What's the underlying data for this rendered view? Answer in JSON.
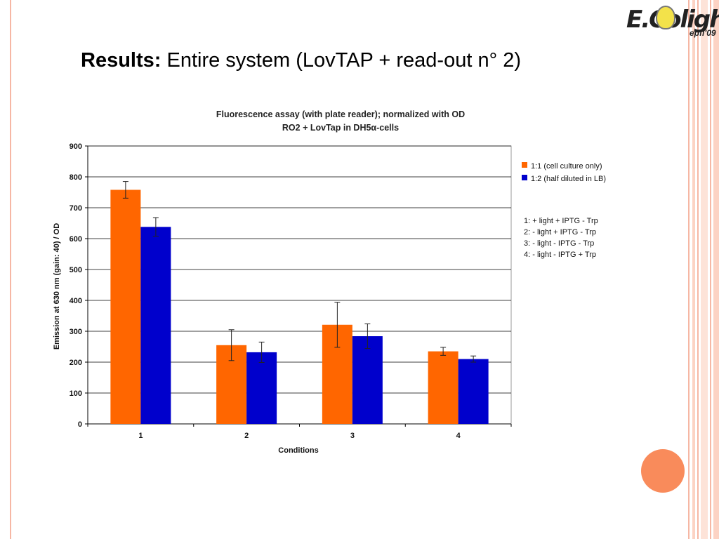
{
  "slide": {
    "title_bold": "Results:",
    "title_rest": " Entire system (LovTAP + read-out n° 2)",
    "logo": {
      "text": "E.Colight",
      "sub": "epfl'09"
    }
  },
  "chart_data": {
    "type": "bar",
    "title": "Fluorescence assay (with plate reader); normalized with OD",
    "subtitle": "RO2 + LovTap in DH5α-cells",
    "xlabel": "Conditions",
    "ylabel": "Emission at 630 nm (gain: 40) / OD",
    "categories": [
      "1",
      "2",
      "3",
      "4"
    ],
    "ylim": [
      0,
      900
    ],
    "yticks": [
      0,
      100,
      200,
      300,
      400,
      500,
      600,
      700,
      800,
      900
    ],
    "grid": true,
    "legend_position": "right",
    "series": [
      {
        "name": "1:1 (cell culture only)",
        "color": "#ff6600",
        "values": [
          758,
          255,
          321,
          235
        ],
        "errors": [
          27,
          50,
          73,
          13
        ]
      },
      {
        "name": "1:2 (half diluted in LB)",
        "color": "#0000cc",
        "values": [
          638,
          232,
          284,
          210
        ],
        "errors": [
          30,
          33,
          40,
          10
        ]
      }
    ],
    "notes": [
      "1: + light + IPTG - Trp",
      "2: - light + IPTG - Trp",
      "3: - light - IPTG - Trp",
      "4: - light - IPTG + Trp"
    ]
  }
}
